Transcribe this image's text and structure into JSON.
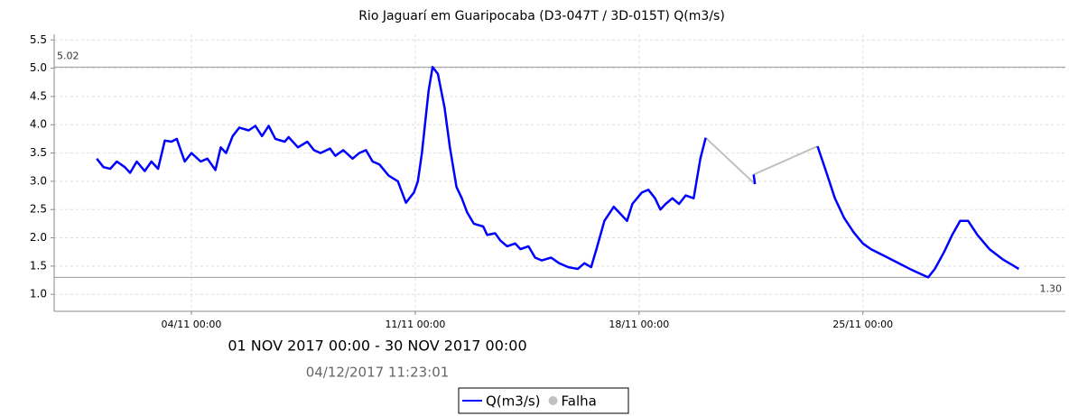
{
  "chart_data": {
    "type": "line",
    "title": "Rio Jaguarí em Guaripocaba (D3-047T / 3D-015T) Q(m3/s)",
    "subtitle": "01 NOV 2017 00:00 - 30 NOV 2017 00:00",
    "timestamp": "04/12/2017 11:23:01",
    "xlim": [
      "30/10 17:00",
      "01/12 08:00"
    ],
    "xticks": [
      "04/11 00:00",
      "11/11 00:00",
      "18/11 00:00",
      "25/11 00:00"
    ],
    "ylim": [
      0.7,
      5.6
    ],
    "yticks": [
      {
        "value": 1.0,
        "label": "1.0"
      },
      1.5,
      {
        "value": 2.0,
        "label": "2.0"
      },
      2.5,
      {
        "value": 3.0,
        "label": "3.0"
      },
      3.5,
      {
        "value": 4.0,
        "label": "4.0"
      },
      4.5,
      {
        "value": 5.0,
        "label": "5.0"
      },
      5.5
    ],
    "grid": true,
    "reference_lines": [
      {
        "value": 5.02,
        "label": "5.02",
        "side": "left"
      },
      {
        "value": 1.3,
        "label": "1.30",
        "side": "right"
      }
    ],
    "legend": "bottom",
    "series": [
      {
        "name": "Q(m3/s)",
        "color": "#0000ff",
        "style": "line",
        "x": [
          "01/11 01:00",
          "01/11 06:00",
          "01/11 11:00",
          "01/11 16:00",
          "01/11 22:00",
          "02/11 02:00",
          "02/11 07:00",
          "02/11 13:00",
          "02/11 18:00",
          "02/11 23:00",
          "03/11 04:00",
          "03/11 09:00",
          "03/11 13:00",
          "03/11 19:00",
          "04/11 00:00",
          "04/11 07:00",
          "04/11 12:00",
          "04/11 18:00",
          "04/11 22:00",
          "05/11 02:00",
          "05/11 07:00",
          "05/11 12:00",
          "05/11 19:00",
          "06/11 00:00",
          "06/11 05:00",
          "06/11 10:00",
          "06/11 15:00",
          "06/11 22:00",
          "07/11 01:00",
          "07/11 08:00",
          "07/11 15:00",
          "07/11 20:00",
          "08/11 01:00",
          "08/11 08:00",
          "08/11 12:00",
          "08/11 18:00",
          "09/11 01:00",
          "09/11 06:00",
          "09/11 11:00",
          "09/11 16:00",
          "09/11 21:00",
          "10/11 04:00",
          "10/11 11:00",
          "10/11 17:00",
          "10/11 23:00",
          "11/11 02:00",
          "11/11 05:00",
          "11/11 10:00",
          "11/11 13:00",
          "11/11 17:00",
          "11/11 22:00",
          "12/11 02:00",
          "12/11 07:00",
          "12/11 11:00",
          "12/11 15:00",
          "12/11 20:00",
          "13/11 03:00",
          "13/11 06:00",
          "13/11 12:00",
          "13/11 16:00",
          "13/11 21:00",
          "14/11 03:00",
          "14/11 07:00",
          "14/11 13:00",
          "14/11 18:00",
          "14/11 23:00",
          "15/11 06:00",
          "15/11 12:00",
          "15/11 19:00",
          "16/11 02:00",
          "16/11 07:00",
          "16/11 12:00",
          "16/11 16:00",
          "16/11 22:00",
          "17/11 05:00",
          "17/11 11:00",
          "17/11 15:00",
          "17/11 19:00",
          "18/11 02:00",
          "18/11 07:00",
          "18/11 12:00",
          "18/11 16:00",
          "18/11 20:00",
          "19/11 01:00",
          "19/11 06:00",
          "19/11 11:00",
          "19/11 17:00",
          "19/11 22:00",
          "20/11 02:00",
          "21/11 00:00",
          "21/11 14:00",
          "21/11 15:00",
          "22/11 12:00",
          "23/11 14:00",
          "23/11 20:00",
          "24/11 03:00",
          "24/11 10:00",
          "24/11 17:00",
          "25/11 00:00",
          "25/11 06:00",
          "25/11 17:00",
          "26/11 03:00",
          "26/11 13:00",
          "27/11 01:00",
          "27/11 06:00",
          "27/11 13:00",
          "27/11 19:00",
          "28/11 01:00",
          "28/11 07:00",
          "28/11 14:00",
          "28/11 23:00",
          "29/11 09:00",
          "29/11 16:00",
          "29/11 21:00"
        ],
        "values": [
          3.4,
          3.25,
          3.22,
          3.35,
          3.25,
          3.15,
          3.35,
          3.18,
          3.35,
          3.22,
          3.72,
          3.7,
          3.75,
          3.35,
          3.5,
          3.35,
          3.4,
          3.2,
          3.6,
          3.5,
          3.8,
          3.95,
          3.9,
          3.98,
          3.8,
          3.98,
          3.75,
          3.7,
          3.78,
          3.6,
          3.7,
          3.55,
          3.5,
          3.58,
          3.45,
          3.55,
          3.4,
          3.5,
          3.55,
          3.35,
          3.3,
          3.1,
          3.0,
          2.62,
          2.8,
          3.0,
          3.5,
          4.6,
          5.02,
          4.9,
          4.3,
          3.6,
          2.9,
          2.7,
          2.45,
          2.25,
          2.2,
          2.05,
          2.08,
          1.95,
          1.85,
          1.9,
          1.8,
          1.85,
          1.65,
          1.6,
          1.65,
          1.55,
          1.48,
          1.45,
          1.55,
          1.48,
          1.8,
          2.3,
          2.55,
          2.4,
          2.3,
          2.6,
          2.8,
          2.85,
          2.7,
          2.5,
          2.6,
          2.7,
          2.6,
          2.75,
          2.7,
          3.4,
          3.77,
          null,
          3.12,
          2.95,
          null,
          3.62,
          3.2,
          2.7,
          2.35,
          2.1,
          1.9,
          1.8,
          1.67,
          1.55,
          1.43,
          1.3,
          1.45,
          1.75,
          2.05,
          2.3,
          2.3,
          2.05,
          1.8,
          1.62,
          1.52,
          1.45
        ]
      },
      {
        "name": "Falha",
        "color": "#c0c0c0",
        "style": "dot",
        "x": [
          "20/11 02:00",
          "21/11 15:00",
          "21/11 15:00",
          "21/11 14:00",
          "23/11 14:00"
        ],
        "values": [
          3.77,
          2.95,
          null,
          3.12,
          3.62
        ]
      }
    ]
  }
}
